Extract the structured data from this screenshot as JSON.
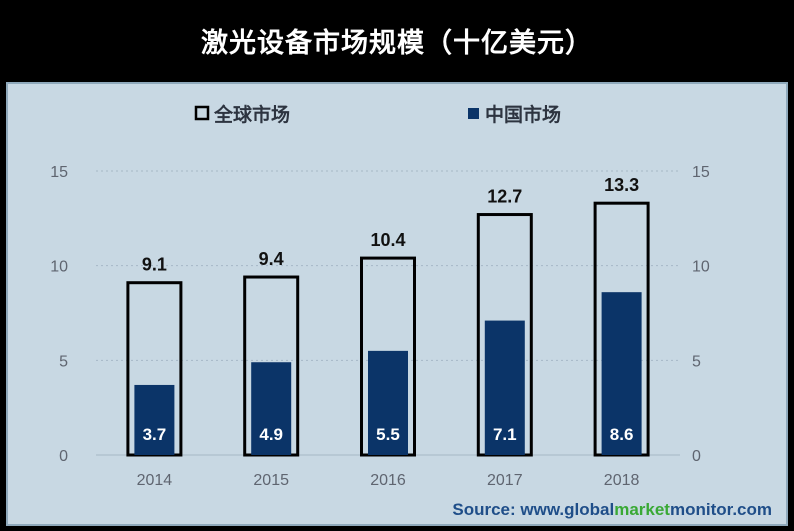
{
  "title": "激光设备市场规模（十亿美元）",
  "source": {
    "prefix": "Source: www.",
    "part1": "global",
    "part2": "market",
    "part3": "monitor",
    "suffix": ".com"
  },
  "colors": {
    "background": "#000000",
    "panel": "#c8d8e3",
    "global_outline": "#000000",
    "china_fill": "#0b3468",
    "axis_text": "#5f6570",
    "source_blue": "#1f4e89",
    "source_green": "#39a935"
  },
  "chart_data": {
    "type": "bar",
    "title": "激光设备市场规模（十亿美元）",
    "categories": [
      "2014",
      "2015",
      "2016",
      "2017",
      "2018"
    ],
    "series": [
      {
        "name": "全球市场",
        "values": [
          9.1,
          9.4,
          10.4,
          12.7,
          13.3
        ],
        "style": "outline"
      },
      {
        "name": "中国市场",
        "values": [
          3.7,
          4.9,
          5.5,
          7.1,
          8.6
        ],
        "style": "filled"
      }
    ],
    "ylim": [
      0,
      15
    ],
    "yticks": [
      0,
      5,
      10,
      15
    ],
    "right_axis_ticks": [
      0,
      5,
      10,
      15
    ],
    "grid": true,
    "legend_position": "top"
  }
}
